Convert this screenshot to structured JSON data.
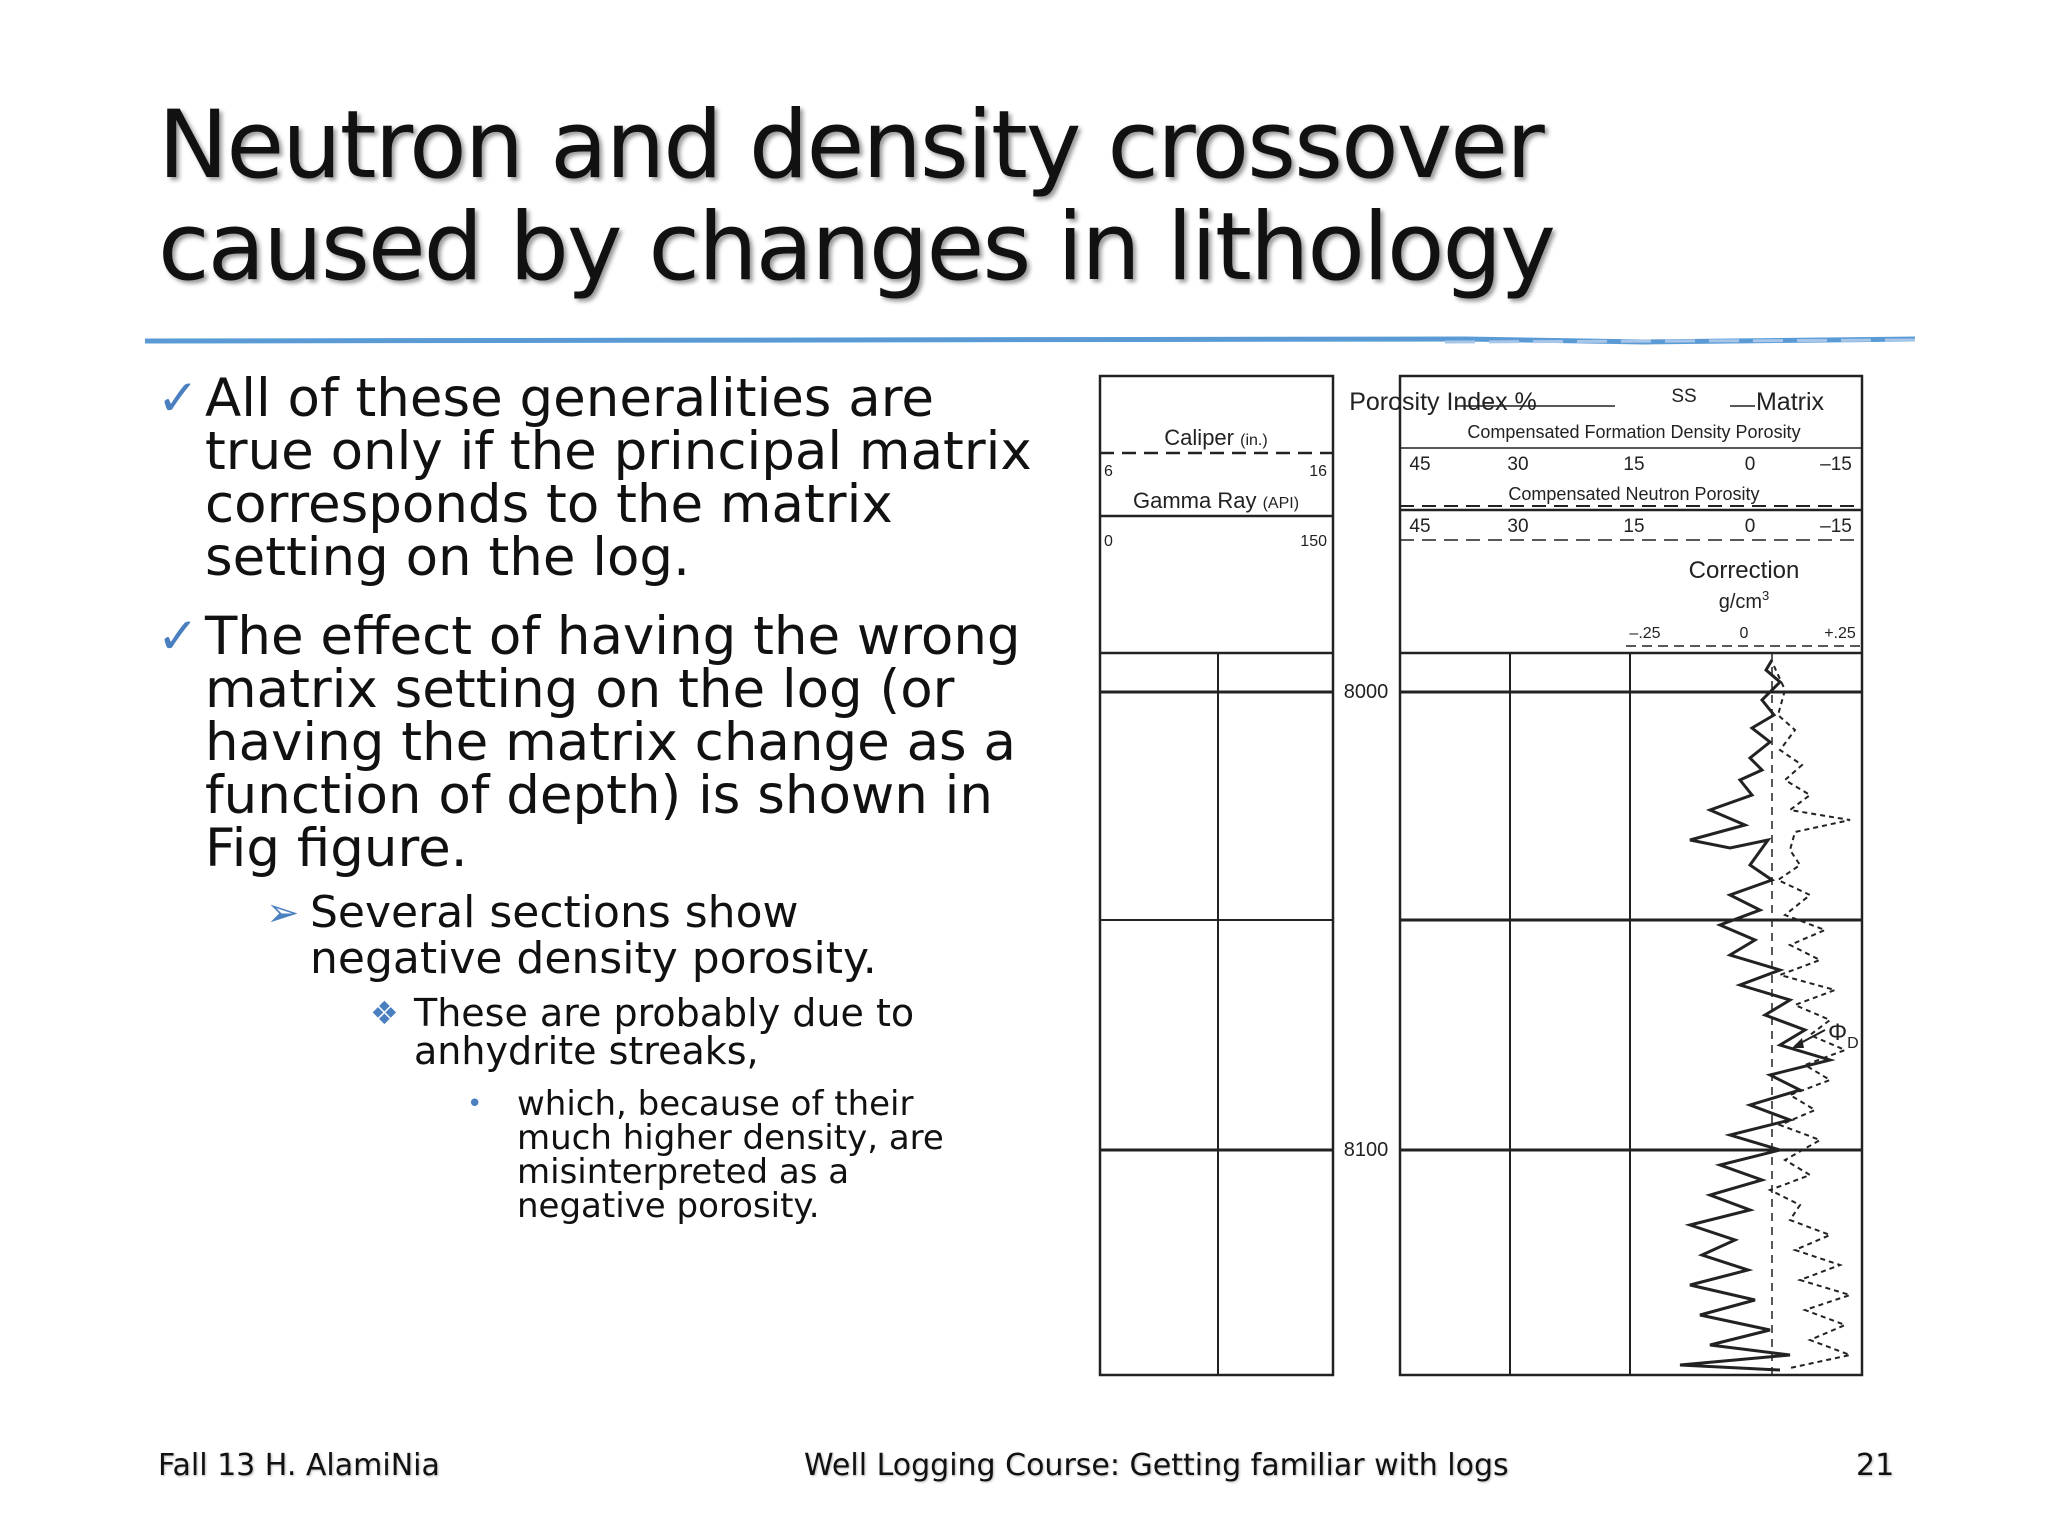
{
  "slide": {
    "title": "Neutron and density crossover caused by changes in lithology",
    "bullets": [
      "All of these generalities are true only if the principal matrix corresponds to the matrix setting on the log.",
      "The effect of having the wrong matrix setting on the log (or having the matrix change as a function of depth) is shown in Fig figure."
    ],
    "sub_bullet": "Several sections show negative density porosity.",
    "sub_sub_bullet": "These are probably due to anhydrite streaks,",
    "sub_sub_sub_bullet": "which, because of their much higher density, are misinterpreted as a negative porosity.",
    "markers": {
      "check": "✓",
      "arrow": "➢",
      "diamond": "❖",
      "dot": "•"
    }
  },
  "figure": {
    "left_track": {
      "caliper_label": "Caliper",
      "caliper_unit": "(in.)",
      "caliper_min": "6",
      "caliper_max": "16",
      "gr_label": "Gamma Ray",
      "gr_unit": "(API)",
      "gr_min": "0",
      "gr_max": "150"
    },
    "depths": [
      "8000",
      "8100"
    ],
    "right_track": {
      "porosity_index": "Porosity Index %",
      "matrix_value": "SS",
      "matrix_label": "Matrix",
      "density_label": "Compensated Formation Density Porosity",
      "neutron_label": "Compensated Neutron Porosity",
      "scale": [
        "45",
        "30",
        "15",
        "0",
        "–15"
      ],
      "correction_label": "Correction",
      "correction_unit": "g/cm",
      "correction_exp": "3",
      "correction_scale": [
        "–.25",
        "0",
        "+.25"
      ],
      "phi_label": "Φ",
      "phi_sub": "D"
    }
  },
  "footer": {
    "left": "Fall 13 H. AlamiNia",
    "center": "Well Logging Course: Getting familiar with logs",
    "page": "21"
  },
  "colors": {
    "accent": "#4a7fc0",
    "rule": "#5b9bd5"
  }
}
